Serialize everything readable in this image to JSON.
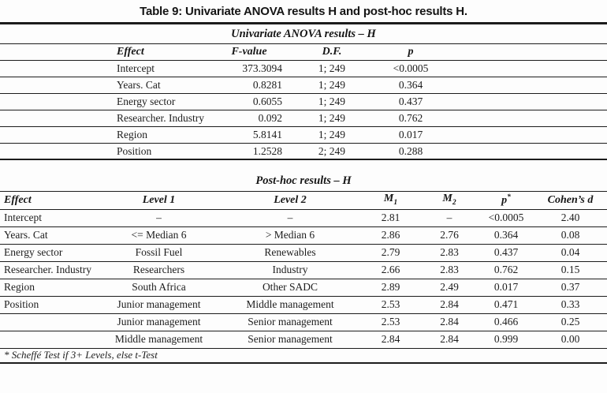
{
  "document": {
    "title": "Table 9: Univariate ANOVA results H and post-hoc results H."
  },
  "anova": {
    "caption": "Univariate ANOVA results – H",
    "columns": [
      {
        "t": "Effect"
      },
      {
        "t": "F-value"
      },
      {
        "t": "D.F."
      },
      {
        "t": "p"
      }
    ],
    "rows": [
      [
        "Intercept",
        "373.3094",
        "1; 249",
        "<0.0005"
      ],
      [
        "Years. Cat",
        "0.8281",
        "1; 249",
        "0.364"
      ],
      [
        "Energy sector",
        "0.6055",
        "1; 249",
        "0.437"
      ],
      [
        "Researcher. Industry",
        "0.092",
        "1; 249",
        "0.762"
      ],
      [
        "Region",
        "5.8141",
        "1; 249",
        "0.017"
      ],
      [
        "Position",
        "1.2528",
        "2; 249",
        "0.288"
      ]
    ]
  },
  "posthoc": {
    "caption": "Post-hoc results – H",
    "columns": [
      {
        "t": "Effect"
      },
      {
        "t": "Level 1"
      },
      {
        "t": "Level 2"
      },
      {
        "t": "M",
        "sub": "1"
      },
      {
        "t": "M",
        "sub": "2"
      },
      {
        "t": "p",
        "sup": "*"
      },
      {
        "t": "Cohen’s d"
      }
    ],
    "rows": [
      [
        "Intercept",
        "–",
        "–",
        "2.81",
        "–",
        "<0.0005",
        "2.40"
      ],
      [
        "Years. Cat",
        "<= Median 6",
        "> Median 6",
        "2.86",
        "2.76",
        "0.364",
        "0.08"
      ],
      [
        "Energy sector",
        "Fossil Fuel",
        "Renewables",
        "2.79",
        "2.83",
        "0.437",
        "0.04"
      ],
      [
        "Researcher. Industry",
        "Researchers",
        "Industry",
        "2.66",
        "2.83",
        "0.762",
        "0.15"
      ],
      [
        "Region",
        "South Africa",
        "Other SADC",
        "2.89",
        "2.49",
        "0.017",
        "0.37"
      ],
      [
        "Position",
        "Junior management",
        "Middle management",
        "2.53",
        "2.84",
        "0.471",
        "0.33"
      ],
      [
        "",
        "Junior management",
        "Senior management",
        "2.53",
        "2.84",
        "0.466",
        "0.25"
      ],
      [
        "",
        "Middle management",
        "Senior management",
        "2.84",
        "2.84",
        "0.999",
        "0.00"
      ]
    ],
    "footnote": "* Scheffé Test if 3+ Levels, else t-Test"
  },
  "colors": {
    "background": "#fdfdfd",
    "text": "#1d1d1d",
    "rule": "#1c1c1c"
  }
}
